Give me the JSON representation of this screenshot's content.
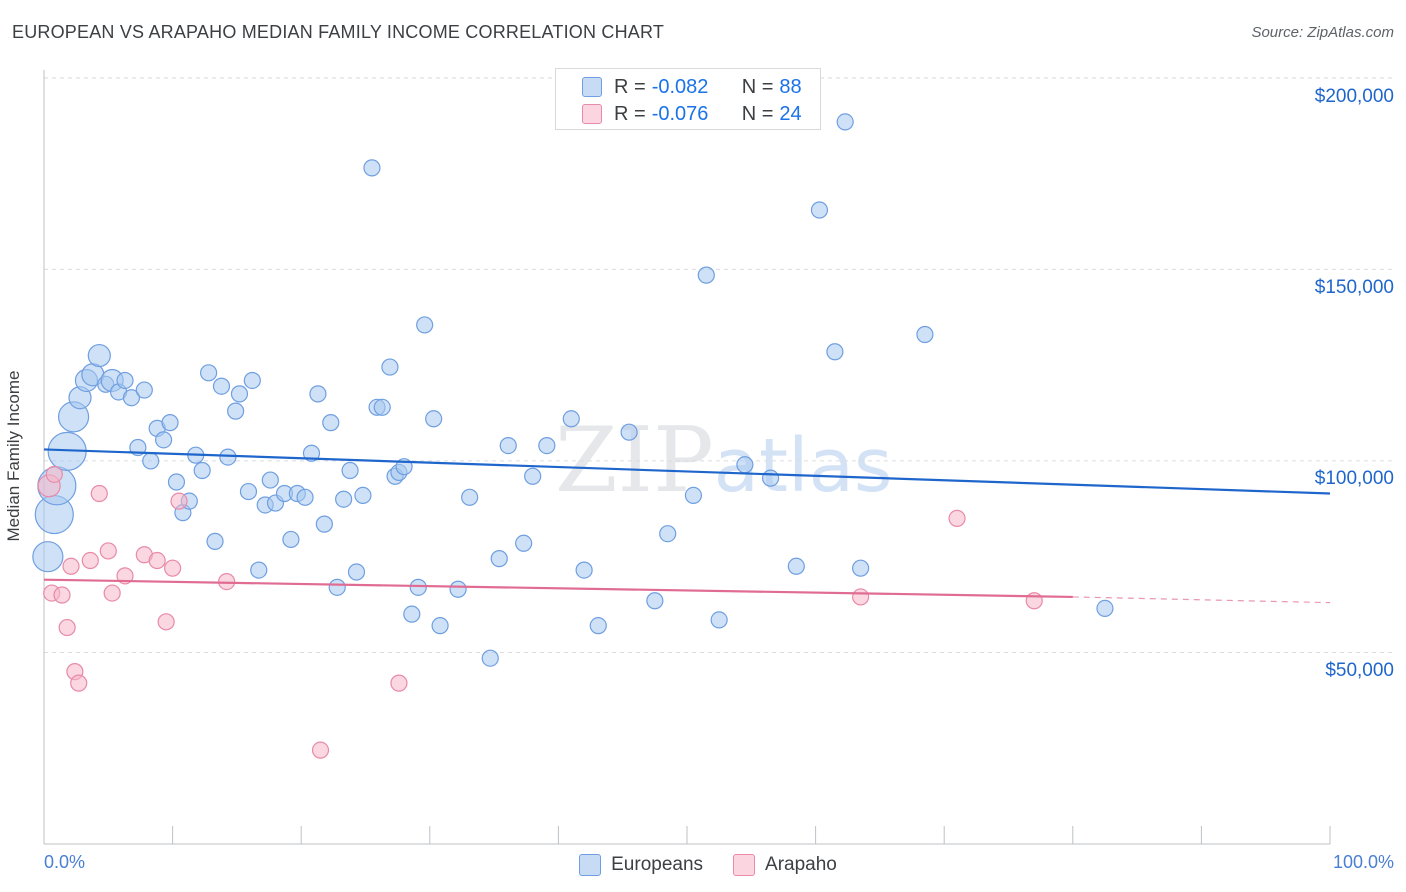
{
  "title": "EUROPEAN VS ARAPAHO MEDIAN FAMILY INCOME CORRELATION CHART",
  "source": "Source: ZipAtlas.com",
  "watermark": {
    "zip": "ZIP",
    "atlas": "atlas"
  },
  "legend_top": {
    "rows": [
      {
        "r_label": "R =",
        "r_value": "-0.082",
        "n_label": "N =",
        "n_value": "88",
        "color": "#a8c8f0"
      },
      {
        "r_label": "R =",
        "r_value": "-0.076",
        "n_label": "N =",
        "n_value": "24",
        "color": "#f6b6c9"
      }
    ]
  },
  "legend_bottom": {
    "europeans": "Europeans",
    "arapaho": "Arapaho"
  },
  "axis": {
    "ylabel": "Median Family Income",
    "x_min_label": "0.0%",
    "x_max_label": "100.0%",
    "y_ticks": [
      "$200,000",
      "$150,000",
      "$100,000",
      "$50,000"
    ]
  },
  "colors": {
    "europeans_fill": "#a8c8f0",
    "europeans_stroke": "#6f9fe0",
    "europeans_line": "#1f66cc",
    "arapaho_fill": "#f6b6c9",
    "arapaho_stroke": "#e88aa8",
    "arapaho_line": "#e06b93",
    "grid": "#dadce0",
    "axis_text": "#1f66cc"
  },
  "chart_data": {
    "type": "scatter",
    "title": "EUROPEAN VS ARAPAHO MEDIAN FAMILY INCOME CORRELATION CHART",
    "xlabel": "",
    "ylabel": "Median Family Income",
    "xlim": [
      0,
      100
    ],
    "ylim": [
      0,
      210000
    ],
    "grid": true,
    "legend_placement": "bottom",
    "series": [
      {
        "name": "Europeans",
        "trend": {
          "x": [
            0,
            100
          ],
          "y": [
            103000,
            91500
          ]
        },
        "points": [
          [
            0.3,
            75000,
            3
          ],
          [
            0.8,
            86000,
            4
          ],
          [
            1.0,
            93500,
            4
          ],
          [
            1.8,
            102500,
            4
          ],
          [
            2.3,
            111500,
            3
          ],
          [
            2.8,
            116500,
            2
          ],
          [
            3.3,
            121000,
            2
          ],
          [
            3.8,
            122500,
            2
          ],
          [
            4.3,
            127500,
            2
          ],
          [
            4.8,
            120000,
            1
          ],
          [
            5.3,
            121000,
            2
          ],
          [
            5.8,
            118000,
            1
          ],
          [
            6.3,
            121000,
            1
          ],
          [
            6.8,
            116500,
            1
          ],
          [
            7.3,
            103500,
            1
          ],
          [
            7.8,
            118500,
            1
          ],
          [
            8.3,
            100000,
            1
          ],
          [
            8.8,
            108500,
            1
          ],
          [
            9.3,
            105500,
            1
          ],
          [
            9.8,
            110000,
            1
          ],
          [
            10.3,
            94500,
            1
          ],
          [
            10.8,
            86500,
            1
          ],
          [
            11.3,
            89500,
            1
          ],
          [
            11.8,
            101500,
            1
          ],
          [
            12.3,
            97500,
            1
          ],
          [
            12.8,
            123000,
            1
          ],
          [
            13.3,
            79000,
            1
          ],
          [
            13.8,
            119500,
            1
          ],
          [
            14.3,
            101000,
            1
          ],
          [
            14.9,
            113000,
            1
          ],
          [
            15.2,
            117500,
            1
          ],
          [
            15.9,
            92000,
            1
          ],
          [
            16.2,
            121000,
            1
          ],
          [
            16.7,
            71500,
            1
          ],
          [
            17.2,
            88500,
            1
          ],
          [
            17.6,
            95000,
            1
          ],
          [
            18.0,
            89000,
            1
          ],
          [
            18.7,
            91500,
            1
          ],
          [
            19.2,
            79500,
            1
          ],
          [
            19.7,
            91500,
            1
          ],
          [
            20.3,
            90500,
            1
          ],
          [
            20.8,
            102000,
            1
          ],
          [
            21.3,
            117500,
            1
          ],
          [
            21.8,
            83500,
            1
          ],
          [
            22.3,
            110000,
            1
          ],
          [
            22.8,
            67000,
            1
          ],
          [
            23.3,
            90000,
            1
          ],
          [
            23.8,
            97500,
            1
          ],
          [
            24.3,
            71000,
            1
          ],
          [
            24.8,
            91000,
            1
          ],
          [
            25.5,
            176500,
            1
          ],
          [
            25.9,
            114000,
            1
          ],
          [
            26.3,
            114000,
            1
          ],
          [
            26.9,
            124500,
            1
          ],
          [
            27.3,
            96000,
            1
          ],
          [
            27.6,
            97000,
            1
          ],
          [
            28.0,
            98500,
            1
          ],
          [
            28.6,
            60000,
            1
          ],
          [
            29.1,
            67000,
            1
          ],
          [
            29.6,
            135500,
            1
          ],
          [
            30.3,
            111000,
            1
          ],
          [
            30.8,
            57000,
            1
          ],
          [
            32.2,
            66500,
            1
          ],
          [
            33.1,
            90500,
            1
          ],
          [
            34.7,
            48500,
            1
          ],
          [
            35.4,
            74500,
            1
          ],
          [
            36.1,
            104000,
            1
          ],
          [
            37.3,
            78500,
            1
          ],
          [
            38.0,
            96000,
            1
          ],
          [
            39.1,
            104000,
            1
          ],
          [
            41.0,
            111000,
            1
          ],
          [
            42.0,
            71500,
            1
          ],
          [
            43.1,
            57000,
            1
          ],
          [
            45.5,
            107500,
            1
          ],
          [
            47.5,
            63500,
            1
          ],
          [
            48.5,
            81000,
            1
          ],
          [
            50.5,
            91000,
            1
          ],
          [
            51.5,
            148500,
            1
          ],
          [
            52.5,
            58500,
            1
          ],
          [
            54.5,
            99000,
            1
          ],
          [
            56.5,
            95500,
            1
          ],
          [
            58.5,
            72500,
            1
          ],
          [
            60.3,
            165500,
            1
          ],
          [
            61.5,
            128500,
            1
          ],
          [
            62.3,
            188500,
            1
          ],
          [
            63.5,
            72000,
            1
          ],
          [
            68.5,
            133000,
            1
          ],
          [
            82.5,
            61500,
            1
          ]
        ]
      },
      {
        "name": "Arapaho",
        "trend": {
          "x": [
            0,
            80
          ],
          "y": [
            69000,
            64500
          ],
          "dashed_to": [
            100,
            63000
          ]
        },
        "points": [
          [
            0.4,
            93500,
            2
          ],
          [
            0.8,
            96500,
            1
          ],
          [
            0.6,
            65500,
            1
          ],
          [
            1.4,
            65000,
            1
          ],
          [
            1.8,
            56500,
            1
          ],
          [
            2.1,
            72500,
            1
          ],
          [
            2.4,
            45000,
            1
          ],
          [
            2.7,
            42000,
            1
          ],
          [
            3.6,
            74000,
            1
          ],
          [
            4.3,
            91500,
            1
          ],
          [
            5.0,
            76500,
            1
          ],
          [
            5.3,
            65500,
            1
          ],
          [
            6.3,
            70000,
            1
          ],
          [
            7.8,
            75500,
            1
          ],
          [
            8.8,
            74000,
            1
          ],
          [
            9.5,
            58000,
            1
          ],
          [
            10.0,
            72000,
            1
          ],
          [
            10.5,
            89500,
            1
          ],
          [
            14.2,
            68500,
            1
          ],
          [
            21.5,
            24500,
            1
          ],
          [
            27.6,
            42000,
            1
          ],
          [
            63.5,
            64500,
            1
          ],
          [
            71.0,
            85000,
            1
          ],
          [
            77.0,
            63500,
            1
          ]
        ]
      }
    ]
  }
}
